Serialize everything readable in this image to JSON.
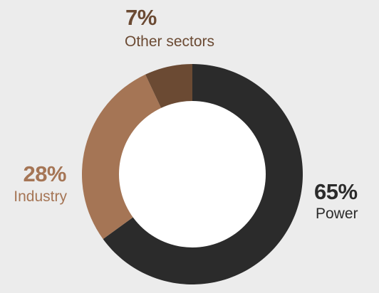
{
  "chart_data": {
    "type": "pie",
    "donut": true,
    "start_angle_deg": 0,
    "direction": "clockwise",
    "slices": [
      {
        "label": "Power",
        "value": 65,
        "value_label": "65%",
        "color": "#2b2b2b"
      },
      {
        "label": "Industry",
        "value": 28,
        "value_label": "28%",
        "color": "#a57555"
      },
      {
        "label": "Other sectors",
        "value": 7,
        "value_label": "7%",
        "color": "#6b4a33"
      }
    ],
    "label_colors": {
      "Power": "#2b2b2b",
      "Industry": "#a57555",
      "Other sectors": "#6b4a33"
    },
    "legend": "none",
    "background": "#ececec",
    "hole_color": "#ffffff"
  }
}
